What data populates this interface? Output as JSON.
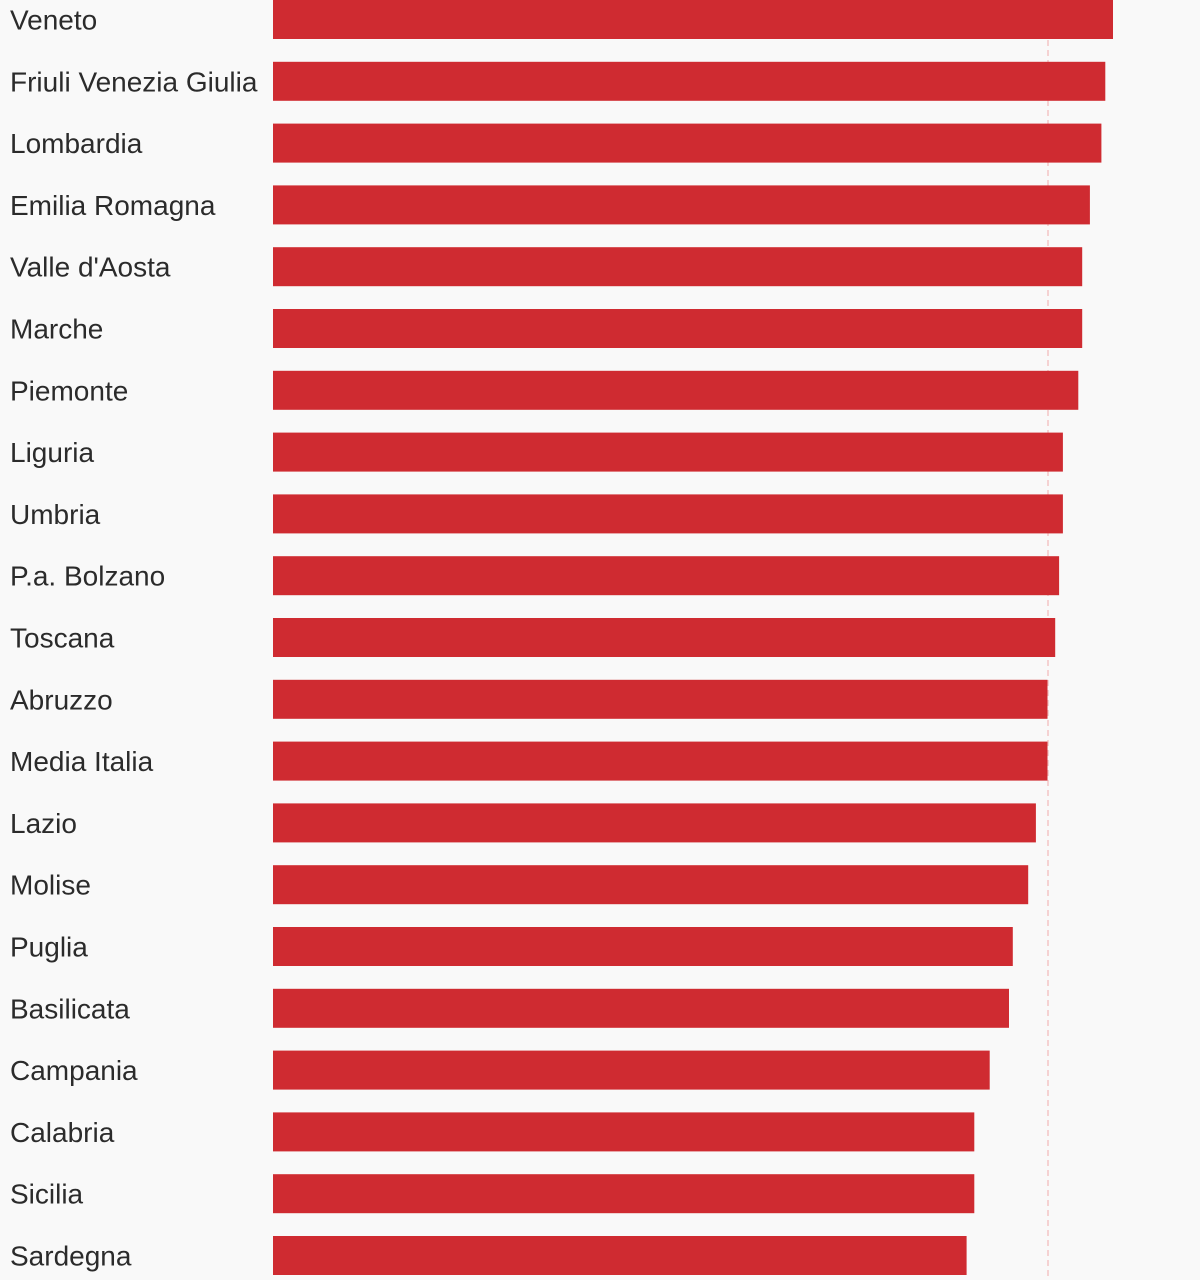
{
  "chart_data": {
    "type": "bar",
    "orientation": "horizontal",
    "categories": [
      "Veneto",
      "Friuli Venezia Giulia",
      "Lombardia",
      "Emilia Romagna",
      "Valle d'Aosta",
      "Marche",
      "Piemonte",
      "Liguria",
      "Umbria",
      "P.a. Bolzano",
      "Toscana",
      "Abruzzo",
      "Media Italia",
      "Lazio",
      "Molise",
      "Puglia",
      "Basilicata",
      "Campania",
      "Calabria",
      "Sicilia",
      "Sardegna"
    ],
    "values": [
      218,
      216,
      215,
      212,
      210,
      210,
      209,
      205,
      205,
      204,
      203,
      201,
      201,
      198,
      196,
      192,
      191,
      186,
      182,
      182,
      180
    ],
    "xlim": [
      0,
      240
    ],
    "reference_line": {
      "category": "Media Italia",
      "value": 201
    },
    "bar_color": "#cf2b31",
    "reference_color": "#f4c6c6",
    "background": "#f9f9f9",
    "title": "",
    "xlabel": "",
    "ylabel": "",
    "grid": false,
    "legend": "none"
  }
}
